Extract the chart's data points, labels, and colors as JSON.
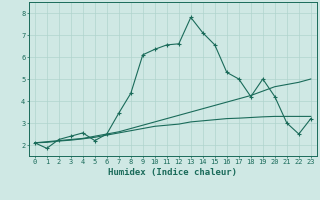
{
  "xlabel": "Humidex (Indice chaleur)",
  "bg_color": "#cfe8e4",
  "grid_color": "#b0d4ce",
  "line_color": "#1a6b5a",
  "xlim": [
    -0.5,
    23.5
  ],
  "ylim": [
    1.5,
    8.5
  ],
  "xticks": [
    0,
    1,
    2,
    3,
    4,
    5,
    6,
    7,
    8,
    9,
    10,
    11,
    12,
    13,
    14,
    15,
    16,
    17,
    18,
    19,
    20,
    21,
    22,
    23
  ],
  "yticks": [
    2,
    3,
    4,
    5,
    6,
    7,
    8
  ],
  "line1_x": [
    0,
    1,
    2,
    3,
    4,
    5,
    6,
    7,
    8,
    9,
    10,
    11,
    12,
    13,
    14,
    15,
    16,
    17,
    18,
    19,
    20,
    21,
    22,
    23
  ],
  "line1_y": [
    2.1,
    1.85,
    2.25,
    2.4,
    2.55,
    2.2,
    2.5,
    3.45,
    4.35,
    6.1,
    6.35,
    6.55,
    6.6,
    7.8,
    7.1,
    6.55,
    5.3,
    5.0,
    4.2,
    5.0,
    4.2,
    3.0,
    2.5,
    3.2
  ],
  "line2_x": [
    0,
    1,
    2,
    3,
    4,
    5,
    6,
    7,
    8,
    9,
    10,
    11,
    12,
    13,
    14,
    15,
    16,
    17,
    18,
    19,
    20,
    21,
    22,
    23
  ],
  "line2_y": [
    2.1,
    2.15,
    2.2,
    2.25,
    2.3,
    2.4,
    2.5,
    2.6,
    2.75,
    2.9,
    3.05,
    3.2,
    3.35,
    3.5,
    3.65,
    3.8,
    3.95,
    4.1,
    4.25,
    4.45,
    4.65,
    4.75,
    4.85,
    5.0
  ],
  "line3_x": [
    0,
    1,
    2,
    3,
    4,
    5,
    6,
    7,
    8,
    9,
    10,
    11,
    12,
    13,
    14,
    15,
    16,
    17,
    18,
    19,
    20,
    21,
    22,
    23
  ],
  "line3_y": [
    2.1,
    2.12,
    2.18,
    2.22,
    2.28,
    2.35,
    2.45,
    2.55,
    2.65,
    2.75,
    2.85,
    2.9,
    2.95,
    3.05,
    3.1,
    3.15,
    3.2,
    3.22,
    3.25,
    3.28,
    3.3,
    3.3,
    3.3,
    3.3
  ]
}
